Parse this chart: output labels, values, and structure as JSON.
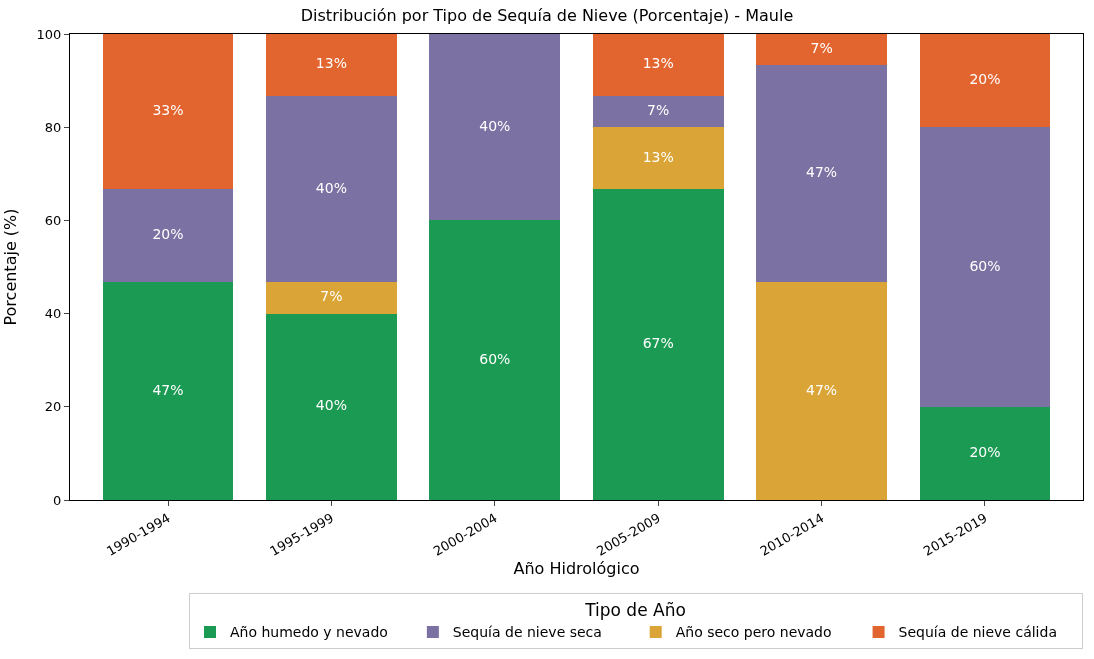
{
  "chart_data": {
    "type": "bar",
    "stacked": true,
    "title": "Distribución por Tipo de Sequía de Nieve (Porcentaje) - Maule",
    "xlabel": "Año Hidrológico",
    "ylabel": "Porcentaje (%)",
    "legend_title": "Tipo de Año",
    "legend": "bottom right",
    "categories": [
      "1990-1994",
      "1995-1999",
      "2000-2004",
      "2005-2009",
      "2010-2014",
      "2015-2019"
    ],
    "ylim": [
      0,
      100
    ],
    "yticks": [
      0,
      20,
      40,
      60,
      80,
      100
    ],
    "series": [
      {
        "name": "Año humedo y nevado",
        "color": "#1b9a53",
        "values": [
          46.7,
          40,
          60,
          66.7,
          0,
          20
        ],
        "value_labels": [
          "47%",
          "40%",
          "60%",
          "67%",
          null,
          "20%"
        ]
      },
      {
        "name": "Año seco pero nevado",
        "color": "#daa536",
        "values": [
          0,
          6.7,
          0,
          13.3,
          46.7,
          0
        ],
        "value_labels": [
          null,
          "7%",
          null,
          "13%",
          "47%",
          null
        ]
      },
      {
        "name": "Sequía de nieve seca",
        "color": "#7b71a2",
        "values": [
          20,
          40,
          40,
          6.7,
          46.6,
          60
        ],
        "value_labels": [
          "20%",
          "40%",
          "40%",
          "7%",
          "47%",
          "60%"
        ]
      },
      {
        "name": "Sequía de nieve cálida",
        "color": "#e2642e",
        "values": [
          33.3,
          13.3,
          0,
          13.3,
          6.7,
          20
        ],
        "value_labels": [
          "33%",
          "13%",
          null,
          "13%",
          "7%",
          "20%"
        ]
      }
    ]
  }
}
